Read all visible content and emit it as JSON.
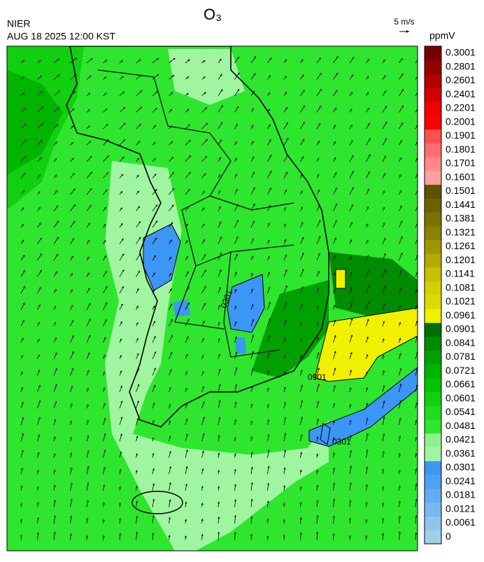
{
  "header": {
    "title": "O₃",
    "agency": "NIER",
    "timestamp": "AUG 18 2025 12:00 KST",
    "wind_scale": "5 m/s"
  },
  "colorbar": {
    "unit": "ppmV",
    "labels": [
      "0",
      "0.0061",
      "0.0121",
      "0.0181",
      "0.0241",
      "0.0301",
      "0.0361",
      "0.0421",
      "0.0481",
      "0.0541",
      "0.0601",
      "0.0661",
      "0.0721",
      "0.0781",
      "0.0841",
      "0.0901",
      "0.0961",
      "0.1021",
      "0.1081",
      "0.1141",
      "0.1201",
      "0.1261",
      "0.1321",
      "0.1381",
      "0.1441",
      "0.1501",
      "0.1601",
      "0.1701",
      "0.1801",
      "0.1901",
      "0.2001",
      "0.2201",
      "0.2401",
      "0.2601",
      "0.2801",
      "0.3001"
    ],
    "colors": [
      "#a0cfe8",
      "#8cc4ec",
      "#78b8ee",
      "#64acf0",
      "#50a0f2",
      "#3c96f5",
      "#a0f5a0",
      "#90f090",
      "#2ee62e",
      "#1edc1e",
      "#10d010",
      "#00c400",
      "#00b400",
      "#00a000",
      "#008c00",
      "#006e00",
      "#f0f000",
      "#dcdc00",
      "#d2d200",
      "#c8c000",
      "#b4aa00",
      "#a09600",
      "#8c8200",
      "#7d7200",
      "#6e6200",
      "#5f5200",
      "#ffa0a0",
      "#ff8888",
      "#ff6e6e",
      "#ff5050",
      "#ff0000",
      "#f00000",
      "#d20000",
      "#b40000",
      "#960000",
      "#780000"
    ]
  },
  "contour_labels": [
    "0301",
    "0901",
    "0301"
  ]
}
